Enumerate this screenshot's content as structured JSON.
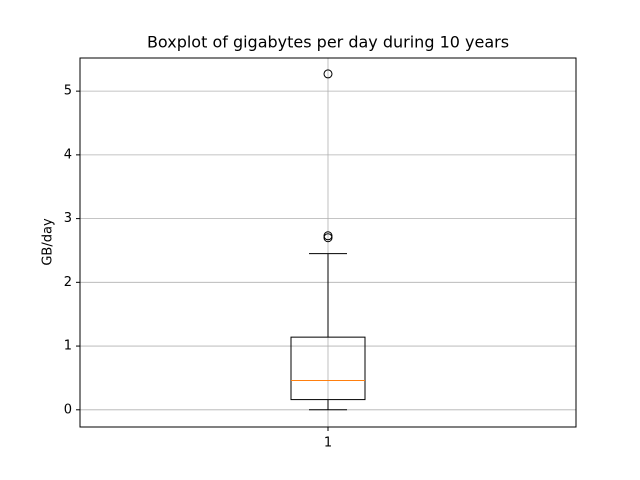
{
  "chart_data": {
    "type": "box",
    "title": "Boxplot of gigabytes per day during 10 years",
    "ylabel": "GB/day",
    "xticks": [
      1
    ],
    "xlim": [
      0.5,
      1.5
    ],
    "ylim": [
      -0.27,
      5.52
    ],
    "yticks": [
      0,
      1,
      2,
      3,
      4,
      5
    ],
    "grid": true,
    "positions": [
      1
    ],
    "boxes": [
      {
        "whislo": 0.0,
        "q1": 0.16,
        "med": 0.46,
        "q3": 1.14,
        "whishi": 2.45,
        "fliers": [
          2.7,
          2.73,
          5.27
        ]
      }
    ],
    "color": "#000000",
    "median_color": "#ff7f0e"
  }
}
